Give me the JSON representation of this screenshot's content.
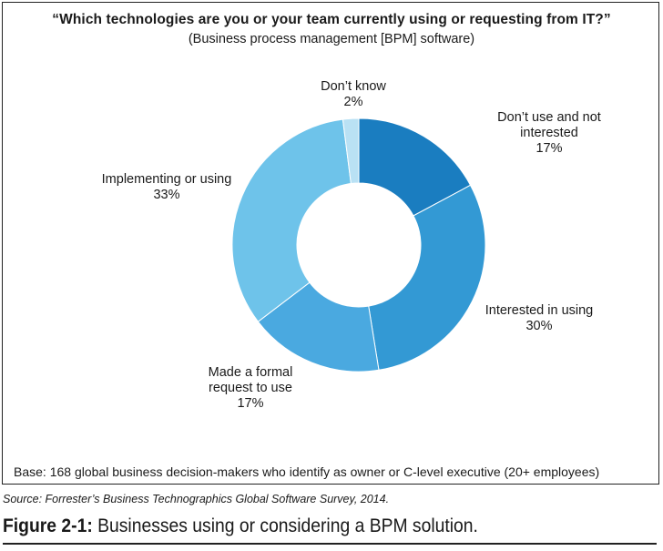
{
  "chart_data": {
    "type": "pie",
    "variant": "donut",
    "title": "“Which technologies are you or your team currently using or requesting from IT?”",
    "subtitle": "(Business process management [BPM] software)",
    "slices": [
      {
        "label_lines": [
          "Don’t use and not",
          "interested"
        ],
        "value": 17,
        "display": "17%",
        "color": "#1a7dc0"
      },
      {
        "label_lines": [
          "Interested in using"
        ],
        "value": 30,
        "display": "30%",
        "color": "#3399d4"
      },
      {
        "label_lines": [
          "Made a formal",
          "request to use"
        ],
        "value": 17,
        "display": "17%",
        "color": "#4aa9e0"
      },
      {
        "label_lines": [
          "Implementing or using"
        ],
        "value": 33,
        "display": "33%",
        "color": "#6ec3ea"
      },
      {
        "label_lines": [
          "Don’t know"
        ],
        "value": 2,
        "display": "2%",
        "color": "#b9e1f4"
      }
    ]
  },
  "base_note": "Base: 168 global business decision-makers who identify as owner or C-level executive (20+ employees)",
  "source": "Source: Forrester’s Business Technographics Global Software Survey, 2014.",
  "caption": {
    "figure_number": "Figure 2-1:",
    "text": " Businesses using or considering a BPM solution."
  }
}
